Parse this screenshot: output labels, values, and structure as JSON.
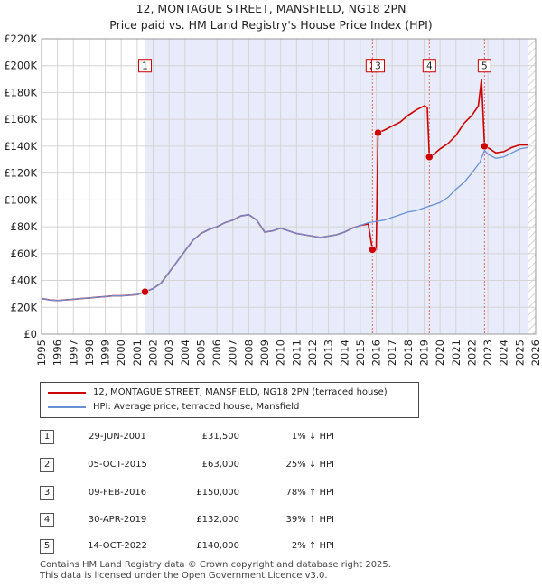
{
  "chart_data": {
    "type": "line",
    "title": "12, MONTAGUE STREET, MANSFIELD, NG18 2PN",
    "subtitle": "Price paid vs. HM Land Registry's House Price Index (HPI)",
    "xlim": [
      1995,
      2026
    ],
    "ylim": [
      0,
      220000
    ],
    "x_ticks": [
      "1995",
      "1996",
      "1997",
      "1998",
      "1999",
      "2000",
      "2001",
      "2002",
      "2003",
      "2004",
      "2005",
      "2006",
      "2007",
      "2008",
      "2009",
      "2010",
      "2011",
      "2012",
      "2013",
      "2014",
      "2015",
      "2016",
      "2017",
      "2018",
      "2019",
      "2020",
      "2021",
      "2022",
      "2023",
      "2024",
      "2025",
      "2026"
    ],
    "y_ticks": [
      {
        "value": 0,
        "label": "£0"
      },
      {
        "value": 20000,
        "label": "£20K"
      },
      {
        "value": 40000,
        "label": "£40K"
      },
      {
        "value": 60000,
        "label": "£60K"
      },
      {
        "value": 80000,
        "label": "£80K"
      },
      {
        "value": 100000,
        "label": "£100K"
      },
      {
        "value": 120000,
        "label": "£120K"
      },
      {
        "value": 140000,
        "label": "£140K"
      },
      {
        "value": 160000,
        "label": "£160K"
      },
      {
        "value": 180000,
        "label": "£180K"
      },
      {
        "value": 200000,
        "label": "£200K"
      },
      {
        "value": 220000,
        "label": "£220K"
      }
    ],
    "grid": true,
    "shaded_ranges": [
      [
        2001.49,
        2025.5
      ]
    ],
    "hatched_from": 2025.5,
    "series": [
      {
        "name": "12, MONTAGUE STREET, MANSFIELD, NG18 2PN (terraced house)",
        "color": "#cc0000",
        "points": [
          [
            1995.0,
            26500
          ],
          [
            1995.5,
            25500
          ],
          [
            1996.0,
            25000
          ],
          [
            1996.5,
            25500
          ],
          [
            1997.0,
            26000
          ],
          [
            1997.5,
            26500
          ],
          [
            1998.0,
            27000
          ],
          [
            1998.5,
            27500
          ],
          [
            1999.0,
            28000
          ],
          [
            1999.5,
            28500
          ],
          [
            2000.0,
            28500
          ],
          [
            2000.5,
            29000
          ],
          [
            2001.0,
            29500
          ],
          [
            2001.49,
            31500
          ],
          [
            2002.0,
            34000
          ],
          [
            2002.5,
            38000
          ],
          [
            2003.0,
            46000
          ],
          [
            2003.5,
            54000
          ],
          [
            2004.0,
            62000
          ],
          [
            2004.5,
            70000
          ],
          [
            2005.0,
            75000
          ],
          [
            2005.5,
            78000
          ],
          [
            2006.0,
            80000
          ],
          [
            2006.5,
            83000
          ],
          [
            2007.0,
            85000
          ],
          [
            2007.5,
            88000
          ],
          [
            2008.0,
            89000
          ],
          [
            2008.5,
            85000
          ],
          [
            2009.0,
            76000
          ],
          [
            2009.5,
            77000
          ],
          [
            2010.0,
            79000
          ],
          [
            2010.5,
            77000
          ],
          [
            2011.0,
            75000
          ],
          [
            2011.5,
            74000
          ],
          [
            2012.0,
            73000
          ],
          [
            2012.5,
            72000
          ],
          [
            2013.0,
            73000
          ],
          [
            2013.5,
            74000
          ],
          [
            2014.0,
            76000
          ],
          [
            2014.5,
            79000
          ],
          [
            2015.0,
            81000
          ],
          [
            2015.5,
            82000
          ],
          [
            2015.76,
            63000
          ],
          [
            2016.0,
            63000
          ],
          [
            2016.11,
            150000
          ],
          [
            2016.5,
            152000
          ],
          [
            2017.0,
            155000
          ],
          [
            2017.5,
            158000
          ],
          [
            2018.0,
            163000
          ],
          [
            2018.5,
            167000
          ],
          [
            2019.0,
            170000
          ],
          [
            2019.2,
            169000
          ],
          [
            2019.33,
            132000
          ],
          [
            2019.6,
            134000
          ],
          [
            2020.0,
            138000
          ],
          [
            2020.5,
            142000
          ],
          [
            2021.0,
            148000
          ],
          [
            2021.5,
            157000
          ],
          [
            2022.0,
            163000
          ],
          [
            2022.4,
            170000
          ],
          [
            2022.6,
            190000
          ],
          [
            2022.79,
            140000
          ],
          [
            2023.0,
            139000
          ],
          [
            2023.5,
            135000
          ],
          [
            2024.0,
            136000
          ],
          [
            2024.5,
            139000
          ],
          [
            2025.0,
            141000
          ],
          [
            2025.5,
            141000
          ]
        ]
      },
      {
        "name": "HPI: Average price, terraced house, Mansfield",
        "color": "#6b8fd4",
        "points": [
          [
            1995.0,
            26500
          ],
          [
            1995.5,
            25500
          ],
          [
            1996.0,
            25000
          ],
          [
            1996.5,
            25500
          ],
          [
            1997.0,
            26000
          ],
          [
            1997.5,
            26500
          ],
          [
            1998.0,
            27000
          ],
          [
            1998.5,
            27500
          ],
          [
            1999.0,
            28000
          ],
          [
            1999.5,
            28500
          ],
          [
            2000.0,
            28500
          ],
          [
            2000.5,
            29000
          ],
          [
            2001.0,
            29500
          ],
          [
            2001.49,
            31500
          ],
          [
            2002.0,
            34000
          ],
          [
            2002.5,
            38000
          ],
          [
            2003.0,
            46000
          ],
          [
            2003.5,
            54000
          ],
          [
            2004.0,
            62000
          ],
          [
            2004.5,
            70000
          ],
          [
            2005.0,
            75000
          ],
          [
            2005.5,
            78000
          ],
          [
            2006.0,
            80000
          ],
          [
            2006.5,
            83000
          ],
          [
            2007.0,
            85000
          ],
          [
            2007.5,
            88000
          ],
          [
            2008.0,
            89000
          ],
          [
            2008.5,
            85000
          ],
          [
            2009.0,
            76000
          ],
          [
            2009.5,
            77000
          ],
          [
            2010.0,
            79000
          ],
          [
            2010.5,
            77000
          ],
          [
            2011.0,
            75000
          ],
          [
            2011.5,
            74000
          ],
          [
            2012.0,
            73000
          ],
          [
            2012.5,
            72000
          ],
          [
            2013.0,
            73000
          ],
          [
            2013.5,
            74000
          ],
          [
            2014.0,
            76000
          ],
          [
            2014.5,
            79000
          ],
          [
            2015.0,
            81000
          ],
          [
            2015.5,
            83000
          ],
          [
            2016.0,
            84000
          ],
          [
            2016.5,
            85000
          ],
          [
            2017.0,
            87000
          ],
          [
            2017.5,
            89000
          ],
          [
            2018.0,
            91000
          ],
          [
            2018.5,
            92000
          ],
          [
            2019.0,
            94000
          ],
          [
            2019.5,
            96000
          ],
          [
            2020.0,
            98000
          ],
          [
            2020.5,
            102000
          ],
          [
            2021.0,
            108000
          ],
          [
            2021.5,
            113000
          ],
          [
            2022.0,
            120000
          ],
          [
            2022.5,
            128000
          ],
          [
            2022.79,
            137000
          ],
          [
            2023.0,
            134000
          ],
          [
            2023.5,
            131000
          ],
          [
            2024.0,
            132000
          ],
          [
            2024.5,
            135000
          ],
          [
            2025.0,
            138000
          ],
          [
            2025.5,
            139000
          ]
        ]
      }
    ],
    "sales": [
      {
        "n": "1",
        "x": 2001.49,
        "price": 31500,
        "marker_y": 200000
      },
      {
        "n": "2",
        "x": 2015.76,
        "price": 63000,
        "marker_y": 200000
      },
      {
        "n": "3",
        "x": 2016.11,
        "price": 150000,
        "marker_y": 200000
      },
      {
        "n": "4",
        "x": 2019.33,
        "price": 132000,
        "marker_y": 200000
      },
      {
        "n": "5",
        "x": 2022.79,
        "price": 140000,
        "marker_y": 200000
      }
    ]
  },
  "legend": {
    "property_label": "12, MONTAGUE STREET, MANSFIELD, NG18 2PN (terraced house)",
    "hpi_label": "HPI: Average price, terraced house, Mansfield",
    "property_color": "#cc0000",
    "hpi_color": "#6b8fd4"
  },
  "transactions": [
    {
      "n": "1",
      "date": "29-JUN-2001",
      "price": "£31,500",
      "hpi": "1% ↓ HPI"
    },
    {
      "n": "2",
      "date": "05-OCT-2015",
      "price": "£63,000",
      "hpi": "25% ↓ HPI"
    },
    {
      "n": "3",
      "date": "09-FEB-2016",
      "price": "£150,000",
      "hpi": "78% ↑ HPI"
    },
    {
      "n": "4",
      "date": "30-APR-2019",
      "price": "£132,000",
      "hpi": "39% ↑ HPI"
    },
    {
      "n": "5",
      "date": "14-OCT-2022",
      "price": "£140,000",
      "hpi": "2% ↑ HPI"
    }
  ],
  "footer": {
    "line1": "Contains HM Land Registry data © Crown copyright and database right 2025.",
    "line2": "This data is licensed under the Open Government Licence v3.0."
  }
}
